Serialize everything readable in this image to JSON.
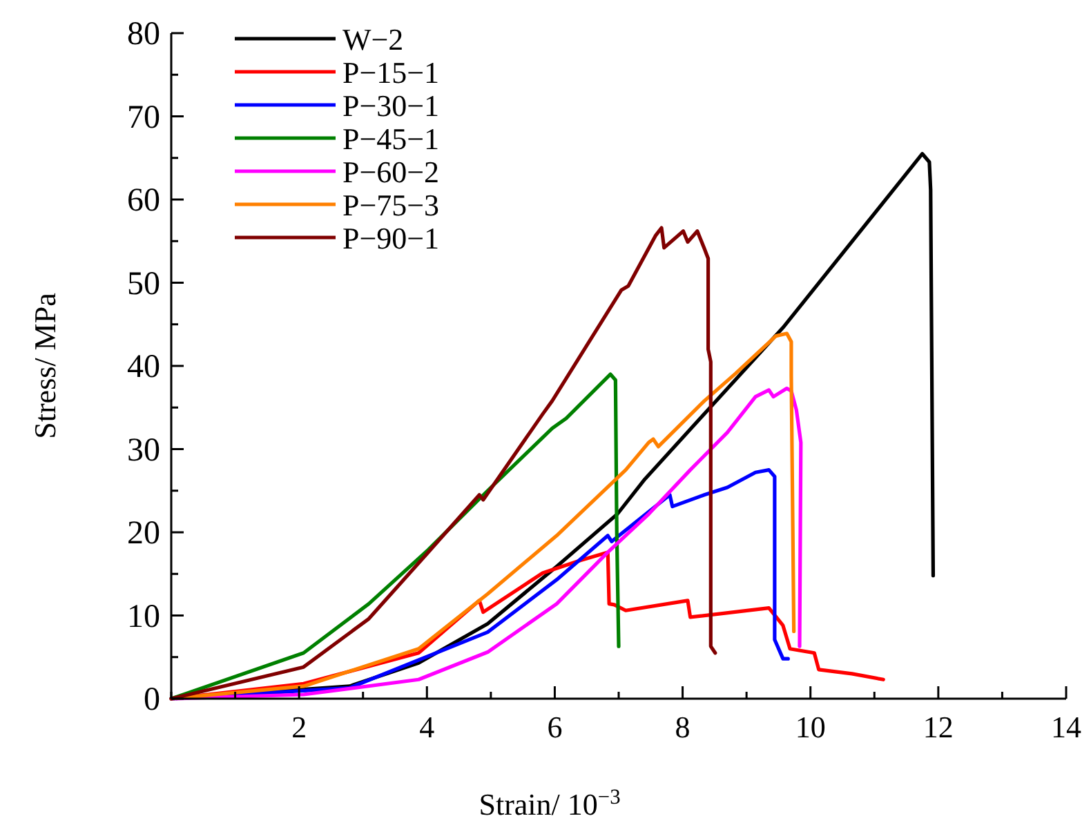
{
  "chart_data": {
    "type": "line",
    "xlabel": "Strain/ 10$^{−3}$",
    "ylabel": "Stress/ MPa",
    "xlim": [
      0,
      14
    ],
    "ylim": [
      0,
      80
    ],
    "xticks": [
      {
        "value": 0,
        "label": null
      },
      {
        "value": 1,
        "label": null
      },
      2,
      {
        "value": 3,
        "label": null
      },
      4,
      {
        "value": 5,
        "label": null
      },
      6,
      {
        "value": 7,
        "label": null
      },
      8,
      {
        "value": 9,
        "label": null
      },
      10,
      {
        "value": 11,
        "label": null
      },
      12,
      {
        "value": 13,
        "label": null
      },
      14
    ],
    "yticks": [
      0,
      {
        "value": 5,
        "label": null
      },
      10,
      {
        "value": 15,
        "label": null
      },
      20,
      {
        "value": 25,
        "label": null
      },
      30,
      {
        "value": 35,
        "label": null
      },
      40,
      {
        "value": 45,
        "label": null
      },
      50,
      {
        "value": 55,
        "label": null
      },
      60,
      {
        "value": 65,
        "label": null
      },
      70,
      {
        "value": 75,
        "label": null
      },
      80
    ],
    "grid": false,
    "legend": "top left",
    "marker": "none",
    "line_style": "solid",
    "series": [
      {
        "name": "W−2",
        "color": "#000000",
        "x": [
          0,
          2.79,
          3.87,
          4.95,
          6.03,
          6.98,
          7.41,
          9.57,
          11.75,
          11.86,
          11.88,
          11.92
        ],
        "values": [
          0,
          1.5,
          4.3,
          9.0,
          15.9,
          22.2,
          26.4,
          44.6,
          65.5,
          64.5,
          61.2,
          14.8
        ]
      },
      {
        "name": "P−15−1",
        "color": "#ff0000",
        "x": [
          0,
          2.07,
          3.87,
          4.82,
          4.88,
          5.81,
          6.39,
          6.83,
          6.85,
          6.93,
          7.11,
          8.08,
          8.12,
          9.35,
          9.57,
          9.68,
          10.06,
          10.13,
          10.65,
          11.14
        ],
        "values": [
          0,
          1.8,
          5.5,
          11.8,
          10.4,
          15.1,
          16.6,
          17.6,
          11.4,
          11.3,
          10.6,
          11.8,
          9.8,
          10.9,
          8.8,
          6.0,
          5.5,
          3.5,
          3.0,
          2.3
        ]
      },
      {
        "name": "P−30−1",
        "color": "#0000ff",
        "x": [
          0,
          2.79,
          4.95,
          6.03,
          6.83,
          6.89,
          7.8,
          7.84,
          8.34,
          8.7,
          9.14,
          9.35,
          9.44,
          9.44,
          9.57,
          9.65
        ],
        "values": [
          0,
          1.3,
          8.0,
          14.3,
          19.6,
          18.9,
          24.5,
          23.1,
          24.5,
          25.4,
          27.2,
          27.5,
          26.7,
          7.1,
          4.8,
          4.8
        ]
      },
      {
        "name": "P−45−1",
        "color": "#008000",
        "x": [
          0,
          2.07,
          3.09,
          4.02,
          4.95,
          5.96,
          6.18,
          6.61,
          6.87,
          6.95,
          6.97,
          7.0
        ],
        "values": [
          0,
          5.5,
          11.4,
          17.9,
          25.0,
          32.5,
          33.7,
          37.0,
          39.0,
          38.3,
          20,
          6.3
        ]
      },
      {
        "name": "P−60−2",
        "color": "#ff00ff",
        "x": [
          0,
          2.07,
          3.87,
          4.95,
          6.03,
          6.83,
          7.47,
          8.12,
          8.7,
          9.14,
          9.35,
          9.42,
          9.63,
          9.7,
          9.78,
          9.85,
          9.83
        ],
        "values": [
          0,
          0.5,
          2.3,
          5.6,
          11.4,
          17.6,
          22.2,
          27.5,
          32.0,
          36.3,
          37.1,
          36.3,
          37.3,
          37.0,
          34.7,
          30.8,
          6.3
        ]
      },
      {
        "name": "P−75−3",
        "color": "#ff8000",
        "x": [
          0,
          2.07,
          3.87,
          4.95,
          6.03,
          7.11,
          7.47,
          7.54,
          7.62,
          8.34,
          8.83,
          9.46,
          9.63,
          9.7,
          9.7,
          9.74
        ],
        "values": [
          0,
          1.5,
          6.0,
          12.6,
          19.6,
          27.5,
          30.8,
          31.2,
          30.3,
          35.8,
          39.1,
          43.6,
          43.9,
          42.9,
          38.8,
          8.1
        ]
      },
      {
        "name": "P−90−1",
        "color": "#800000",
        "x": [
          0,
          2.07,
          3.09,
          4.02,
          4.82,
          4.88,
          5.81,
          5.96,
          7.04,
          7.15,
          7.58,
          7.67,
          7.71,
          8.01,
          8.08,
          8.23,
          8.34,
          8.4,
          8.4,
          8.44,
          8.44,
          8.51
        ],
        "values": [
          0,
          3.8,
          9.6,
          17.6,
          24.5,
          23.9,
          34.2,
          35.8,
          49.1,
          49.6,
          55.7,
          56.6,
          54.2,
          56.2,
          54.9,
          56.2,
          54.1,
          52.9,
          42.0,
          40.5,
          6.3,
          5.5
        ]
      }
    ]
  }
}
